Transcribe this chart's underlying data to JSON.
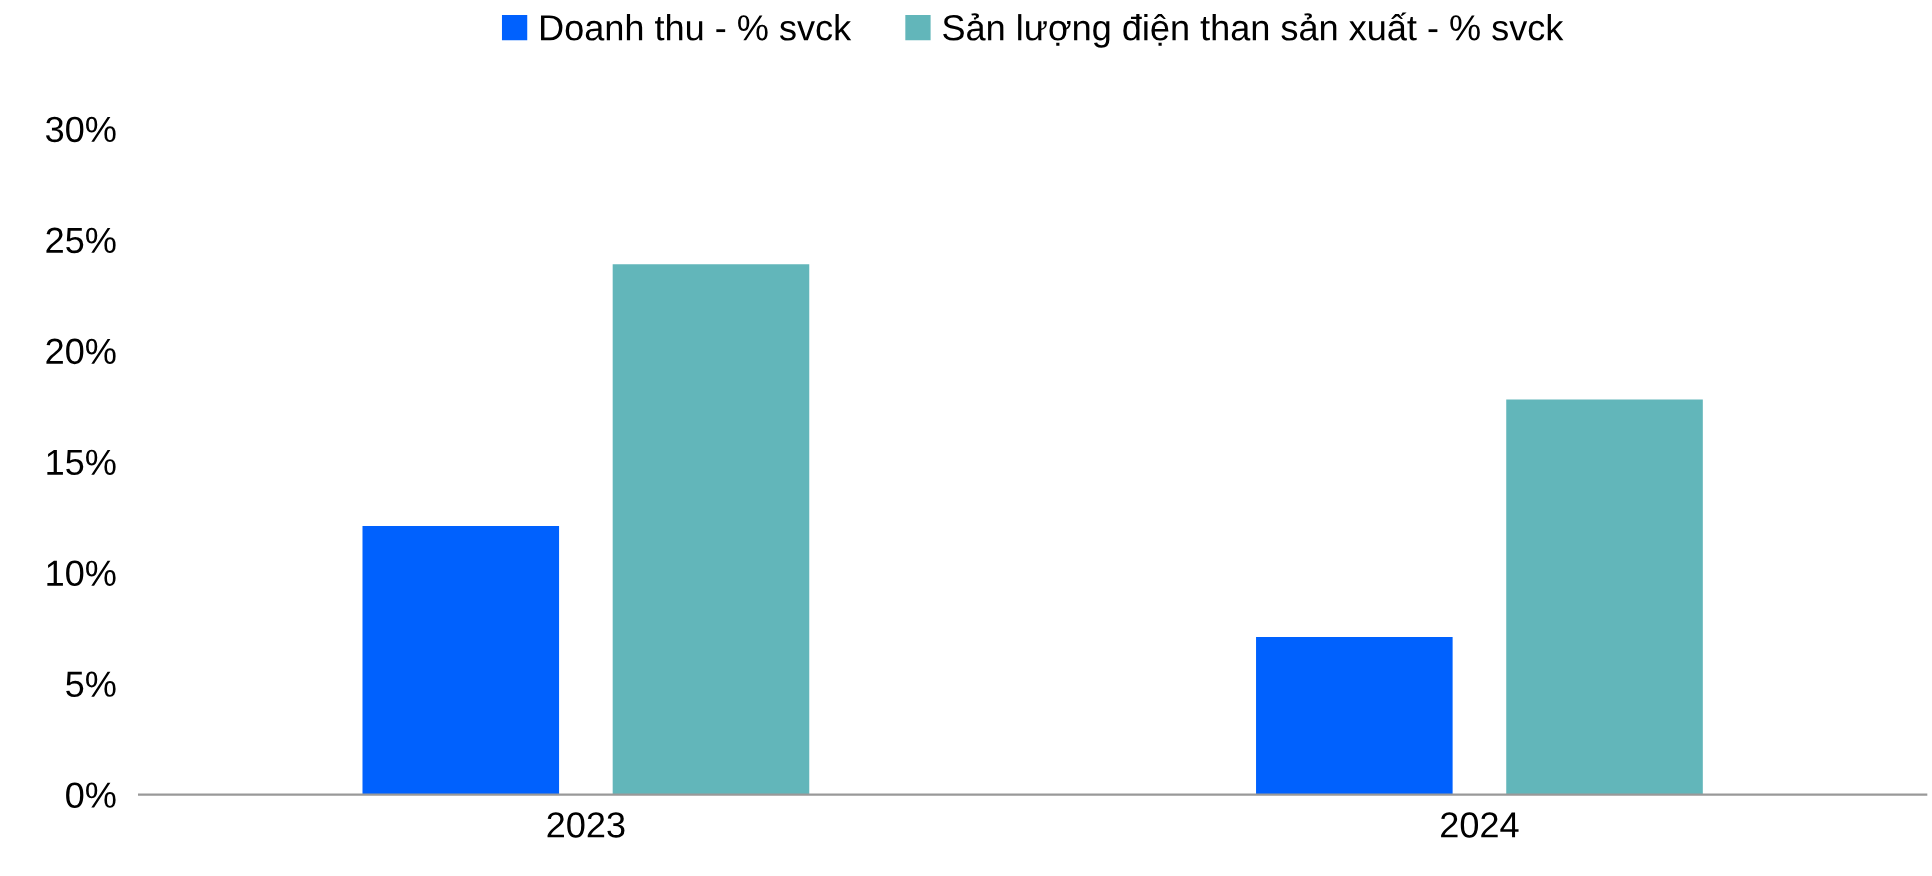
{
  "chart_data": {
    "type": "bar",
    "categories": [
      "2023",
      "2024"
    ],
    "series": [
      {
        "name": "Doanh thu - % svck",
        "color": "#0061fe",
        "values": [
          12.1,
          7.1
        ]
      },
      {
        "name": "Sản lượng điện than sản xuất - % svck",
        "color": "#62b6ba",
        "values": [
          23.9,
          17.8
        ]
      }
    ],
    "ylim": [
      0,
      30
    ],
    "yticks": [
      {
        "value": 0,
        "label": "0%"
      },
      {
        "value": 5,
        "label": "5%"
      },
      {
        "value": 10,
        "label": "10%"
      },
      {
        "value": 15,
        "label": "15%"
      },
      {
        "value": 20,
        "label": "20%"
      },
      {
        "value": 25,
        "label": "25%"
      },
      {
        "value": 30,
        "label": "30%"
      }
    ],
    "grid": false,
    "legend": "top"
  }
}
